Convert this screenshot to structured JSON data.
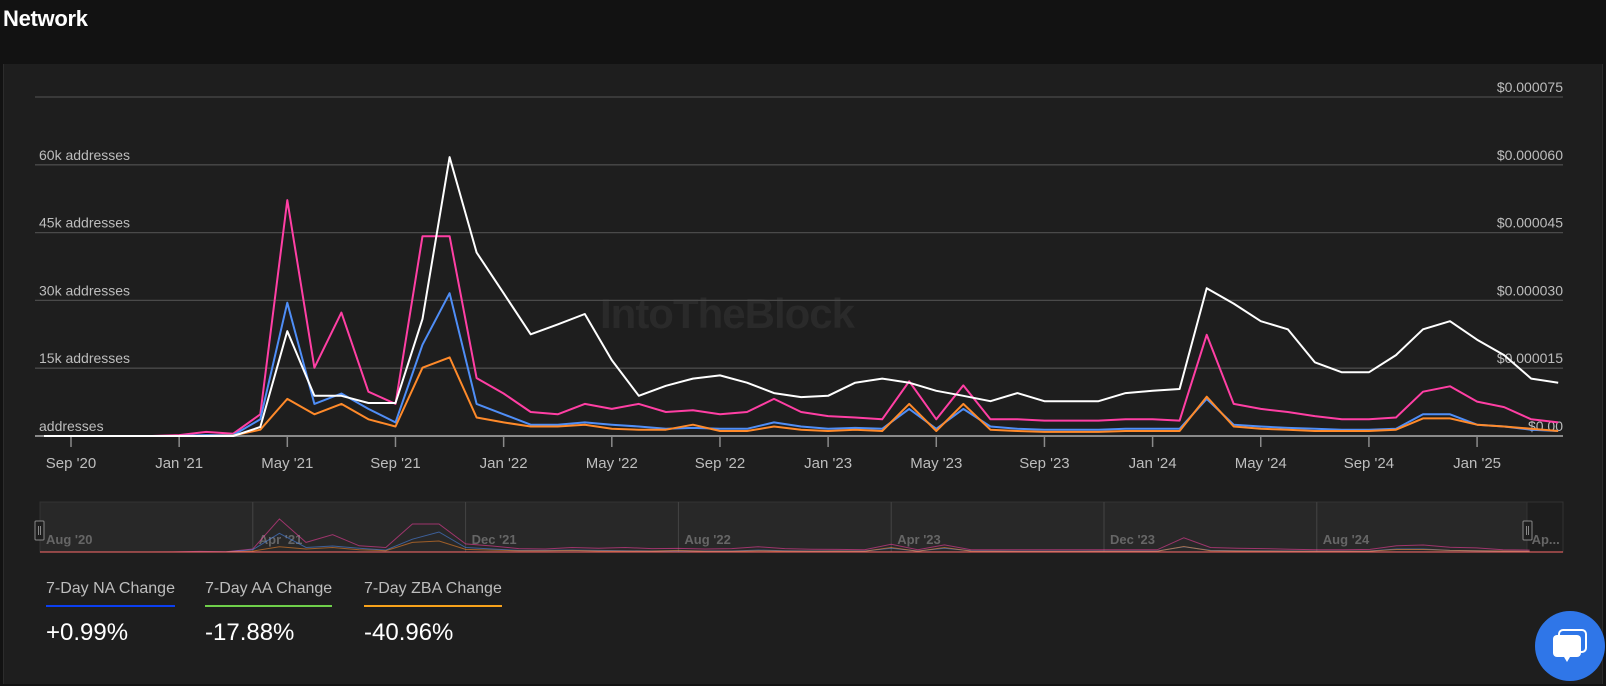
{
  "header": {
    "title": "Network"
  },
  "watermark": "IntoTheBlock",
  "chart_data": {
    "type": "line",
    "left_axis": {
      "labels": [
        "addresses",
        "15k addresses",
        "30k addresses",
        "45k addresses",
        "60k addresses"
      ],
      "values": [
        0,
        15000,
        30000,
        45000,
        60000
      ],
      "range": [
        0,
        75000
      ]
    },
    "right_axis": {
      "labels": [
        "$0.00",
        "$0.000015",
        "$0.000030",
        "$0.000045",
        "$0.000060",
        "$0.000075"
      ],
      "values": [
        0,
        1.5e-05,
        3e-05,
        4.5e-05,
        6e-05,
        7.5e-05
      ],
      "range": [
        0,
        7.5e-05
      ]
    },
    "x_ticks": [
      {
        "label": "Sep '20",
        "date": "2020-09"
      },
      {
        "label": "Jan '21",
        "date": "2021-01"
      },
      {
        "label": "May '21",
        "date": "2021-05"
      },
      {
        "label": "Sep '21",
        "date": "2021-09"
      },
      {
        "label": "Jan '22",
        "date": "2022-01"
      },
      {
        "label": "May '22",
        "date": "2022-05"
      },
      {
        "label": "Sep '22",
        "date": "2022-09"
      },
      {
        "label": "Jan '23",
        "date": "2023-01"
      },
      {
        "label": "May '23",
        "date": "2023-05"
      },
      {
        "label": "Sep '23",
        "date": "2023-09"
      },
      {
        "label": "Jan '24",
        "date": "2024-01"
      },
      {
        "label": "May '24",
        "date": "2024-05"
      },
      {
        "label": "Sep '24",
        "date": "2024-09"
      },
      {
        "label": "Jan '25",
        "date": "2025-01"
      }
    ],
    "navigator_ticks": [
      {
        "label": "Aug '20",
        "date": "2020-08"
      },
      {
        "label": "Apr '21",
        "date": "2021-04"
      },
      {
        "label": "Dec '21",
        "date": "2021-12"
      },
      {
        "label": "Aug '22",
        "date": "2022-08"
      },
      {
        "label": "Apr '23",
        "date": "2023-04"
      },
      {
        "label": "Dec '23",
        "date": "2023-12"
      },
      {
        "label": "Aug '24",
        "date": "2024-08"
      },
      {
        "label": "Ap...",
        "date": "2025-04"
      }
    ],
    "grid": true,
    "x": [
      "2020-08",
      "2020-09",
      "2020-10",
      "2020-11",
      "2020-12",
      "2021-01",
      "2021-02",
      "2021-03",
      "2021-04",
      "2021-05",
      "2021-06",
      "2021-07",
      "2021-08",
      "2021-09",
      "2021-10",
      "2021-11",
      "2021-12",
      "2022-01",
      "2022-02",
      "2022-03",
      "2022-04",
      "2022-05",
      "2022-06",
      "2022-07",
      "2022-08",
      "2022-09",
      "2022-10",
      "2022-11",
      "2022-12",
      "2023-01",
      "2023-02",
      "2023-03",
      "2023-04",
      "2023-05",
      "2023-06",
      "2023-07",
      "2023-08",
      "2023-09",
      "2023-10",
      "2023-11",
      "2023-12",
      "2024-01",
      "2024-02",
      "2024-03",
      "2024-04",
      "2024-05",
      "2024-06",
      "2024-07",
      "2024-08",
      "2024-09",
      "2024-10",
      "2024-11",
      "2024-12",
      "2025-01",
      "2025-02",
      "2025-03",
      "2025-04"
    ],
    "series": [
      {
        "color": "#ff3fa4",
        "axis": "left",
        "values": [
          0,
          0,
          0,
          0,
          0,
          200,
          900,
          500,
          4800,
          52200,
          15100,
          27300,
          9800,
          7100,
          44200,
          44200,
          12800,
          9400,
          5300,
          4800,
          7100,
          6000,
          7100,
          5300,
          5700,
          4800,
          5300,
          8200,
          5300,
          4400,
          4100,
          3700,
          12100,
          3700,
          11200,
          3700,
          3700,
          3400,
          3400,
          3400,
          3700,
          3700,
          3400,
          22400,
          7100,
          6000,
          5300,
          4400,
          3700,
          3700,
          4100,
          9800,
          11000,
          7600,
          6400,
          3700,
          3000
        ]
      },
      {
        "color": "#4f8ef7",
        "axis": "left",
        "values": [
          0,
          0,
          0,
          0,
          0,
          0,
          200,
          200,
          3700,
          29500,
          7100,
          9400,
          6000,
          3000,
          20200,
          31600,
          7100,
          4800,
          2500,
          2500,
          3000,
          2500,
          2100,
          1600,
          1800,
          1600,
          1600,
          3000,
          2100,
          1600,
          1800,
          1600,
          6000,
          1600,
          6000,
          2100,
          1600,
          1400,
          1400,
          1400,
          1600,
          1600,
          1600,
          8200,
          2500,
          2100,
          1800,
          1600,
          1400,
          1400,
          1600,
          4800,
          4800,
          2500,
          2100,
          1400,
          1100
        ]
      },
      {
        "color": "#ff8a2a",
        "axis": "left",
        "values": [
          0,
          0,
          0,
          0,
          0,
          0,
          0,
          100,
          1400,
          8200,
          4800,
          7100,
          3700,
          2100,
          15100,
          17400,
          4100,
          3000,
          2100,
          2100,
          2500,
          1600,
          1400,
          1400,
          2500,
          1100,
          1100,
          2100,
          1400,
          1100,
          1400,
          1100,
          7100,
          1100,
          7100,
          1400,
          1100,
          900,
          900,
          900,
          1100,
          1100,
          1100,
          8700,
          2100,
          1600,
          1400,
          1100,
          1100,
          1100,
          1400,
          3900,
          3900,
          2500,
          2100,
          1600,
          1100
        ]
      },
      {
        "color": "#ffffff",
        "axis": "right",
        "values": [
          0,
          0,
          0,
          0,
          0,
          0,
          0,
          0,
          2e-06,
          2.32e-05,
          8.9e-06,
          8.9e-06,
          7.3e-06,
          7.3e-06,
          2.59e-05,
          6.17e-05,
          4.06e-05,
          3.16e-05,
          2.25e-05,
          2.47e-05,
          2.7e-05,
          1.68e-05,
          8.9e-06,
          1.11e-05,
          1.27e-05,
          1.34e-05,
          1.18e-05,
          9.5e-06,
          8.6e-06,
          8.9e-06,
          1.18e-05,
          1.27e-05,
          1.18e-05,
          1e-05,
          8.9e-06,
          7.7e-06,
          9.5e-06,
          7.7e-06,
          7.7e-06,
          7.7e-06,
          9.5e-06,
          1e-05,
          1.04e-05,
          3.27e-05,
          2.93e-05,
          2.54e-05,
          2.36e-05,
          1.63e-05,
          1.41e-05,
          1.41e-05,
          1.79e-05,
          2.36e-05,
          2.54e-05,
          2.13e-05,
          1.79e-05,
          1.27e-05,
          1.18e-05
        ]
      }
    ]
  },
  "legend": [
    {
      "label": "7-Day NA Change",
      "value": "+0.99%",
      "color": "#0b3ff0"
    },
    {
      "label": "7-Day AA Change",
      "value": "-17.88%",
      "color": "#6fcf4a"
    },
    {
      "label": "7-Day ZBA Change",
      "value": "-40.96%",
      "color": "#f7a21b"
    }
  ],
  "chat": {
    "icon": "chat-bubble-icon",
    "color": "#2f76e8"
  }
}
